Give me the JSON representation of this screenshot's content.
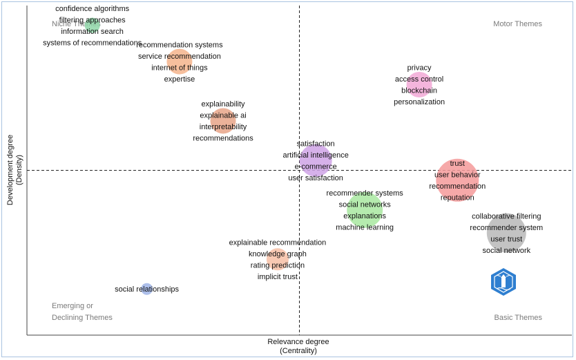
{
  "chart_data": {
    "type": "scatter",
    "title": "",
    "xlabel": "Relevance degree",
    "xlabel_sub": "(Centrality)",
    "ylabel": "Development degree",
    "ylabel_sub": "(Density)",
    "quadrants": {
      "top_left": "Niche Themes",
      "top_right": "Motor Themes",
      "bottom_left_line1": "Emerging or",
      "bottom_left_line2": "Declining Themes",
      "bottom_right": "Basic Themes"
    },
    "xlim": [
      0,
      100
    ],
    "ylim": [
      0,
      100
    ],
    "x_divider": 50,
    "y_divider": 50,
    "clusters": [
      {
        "name": "confidence algorithms",
        "x": 12,
        "y": 94,
        "size": 2,
        "color": "#8fd6a8",
        "labels": [
          "confidence algorithms",
          "filtering approaches",
          "information search",
          "systems of recommendations"
        ]
      },
      {
        "name": "recommendation systems",
        "x": 28,
        "y": 83,
        "size": 5,
        "color": "#f5b48c",
        "labels": [
          "recommendation systems",
          "service recommendation",
          "internet of things",
          "expertise"
        ]
      },
      {
        "name": "explainability",
        "x": 36,
        "y": 65,
        "size": 5,
        "color": "#e8a488",
        "labels": [
          "explainability",
          "explainable ai",
          "interpretability",
          "recommendations"
        ]
      },
      {
        "name": "satisfaction",
        "x": 53,
        "y": 53,
        "size": 7,
        "color": "#cfa3e6",
        "labels": [
          "satisfaction",
          "artificial intelligence",
          "e-commerce",
          "user satisfaction"
        ]
      },
      {
        "name": "privacy",
        "x": 72,
        "y": 76,
        "size": 5,
        "color": "#f2a8d6",
        "labels": [
          "privacy",
          "access control",
          "blockchain",
          "personalization"
        ]
      },
      {
        "name": "trust",
        "x": 79,
        "y": 47,
        "size": 10,
        "color": "#f59a9a",
        "labels": [
          "trust",
          "user behavior",
          "recommendation",
          "reputation"
        ]
      },
      {
        "name": "recommender systems",
        "x": 62,
        "y": 38,
        "size": 8,
        "color": "#a8e8a0",
        "labels": [
          "recommender systems",
          "social networks",
          "explanations",
          "machine learning"
        ]
      },
      {
        "name": "collaborative filtering",
        "x": 88,
        "y": 31,
        "size": 9,
        "color": "#b8b8b8",
        "labels": [
          "collaborative filtering",
          "recommender system",
          "user trust",
          "social network"
        ]
      },
      {
        "name": "explainable recommendation",
        "x": 46,
        "y": 23,
        "size": 4,
        "color": "#f7bfa6",
        "labels": [
          "explainable recommendation",
          "knowledge graph",
          "rating prediction",
          "implicit trust"
        ]
      },
      {
        "name": "social relationships",
        "x": 22,
        "y": 14,
        "size": 1,
        "color": "#9fb4e6",
        "labels": [
          "social relationships"
        ]
      }
    ]
  },
  "logo": {
    "name": "lighthouse-logo",
    "color": "#2f7fd0"
  }
}
